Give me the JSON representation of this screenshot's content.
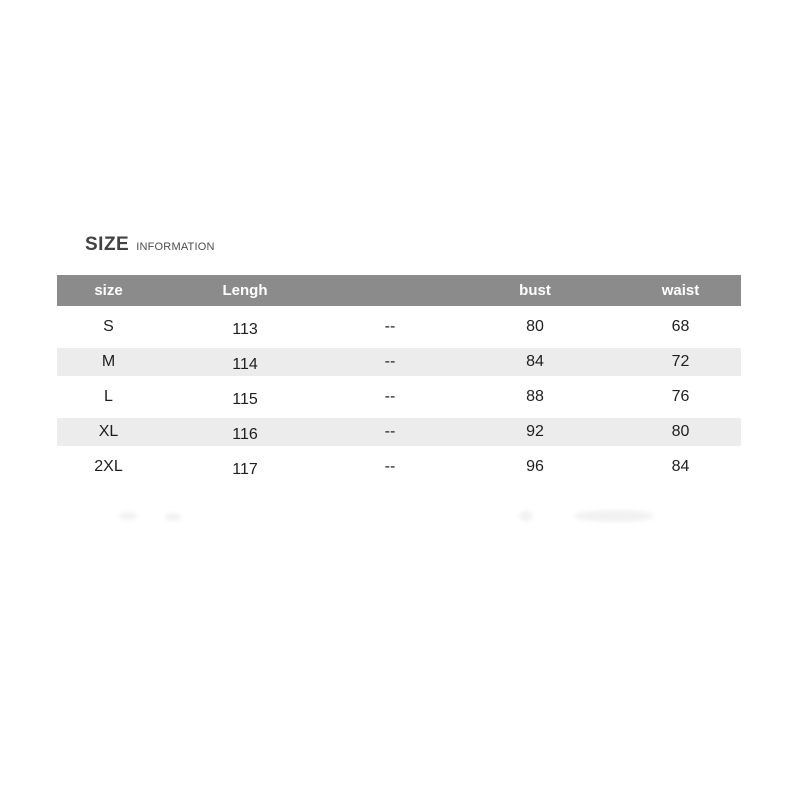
{
  "title": {
    "main": "SIZE",
    "sub": "INFORMATION"
  },
  "table": {
    "columns": [
      {
        "label": "size"
      },
      {
        "label": "Lengh"
      },
      {
        "label": ""
      },
      {
        "label": "bust"
      },
      {
        "label": "waist"
      }
    ],
    "rows": [
      {
        "cells": [
          "S",
          "113",
          "--",
          "80",
          "68"
        ]
      },
      {
        "cells": [
          "M",
          "114",
          "--",
          "84",
          "72"
        ]
      },
      {
        "cells": [
          "L",
          "115",
          "--",
          "88",
          "76"
        ]
      },
      {
        "cells": [
          "XL",
          "116",
          "--",
          "92",
          "80"
        ]
      },
      {
        "cells": [
          "2XL",
          "117",
          "--",
          "96",
          "84"
        ]
      }
    ]
  },
  "colors": {
    "header_bg": "#8b8b8b",
    "header_text": "#ffffff",
    "stripe_bg": "#ececec",
    "body_text": "#1e1e1e",
    "title_text": "#424242"
  }
}
